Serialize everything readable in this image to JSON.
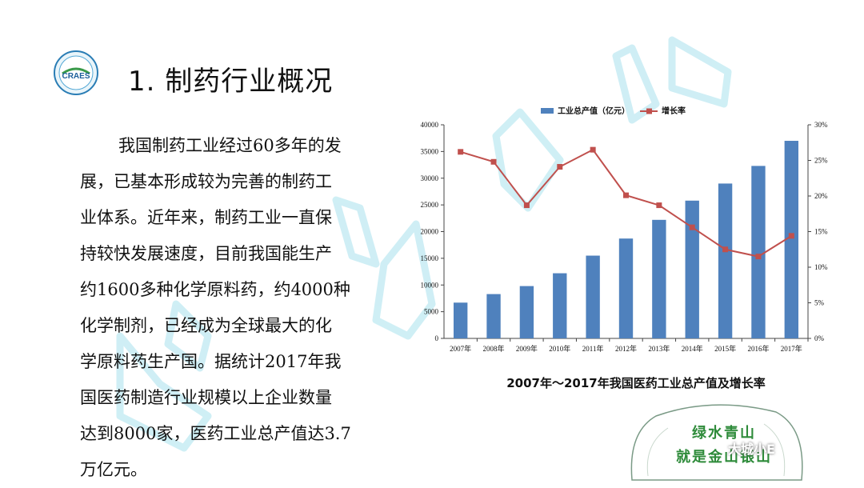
{
  "logo": {
    "text": "CRAES",
    "icon": "craes-logo-icon"
  },
  "slide": {
    "title": "1. 制药行业概况",
    "paragraph_lines": [
      "我国制药工业经过60多年的发",
      "展，已基本形成较为完善的制药工",
      "业体系。近年来，制药工业一直保",
      "持较快发展速度，目前我国能生产",
      "约1600多种化学原料药，约4000种",
      "化学制剂，已经成为全球最大的化",
      "学原料药生产国。据统计2017年我",
      "国医药制造行业规模以上企业数量",
      "达到8000家，医药工业总产值达3.7",
      "万亿元。"
    ],
    "chart_caption": "2007年～2017年我国医药工业总产值及增长率"
  },
  "decor": {
    "stone_line1": "绿水青山",
    "stone_line2": "就是金山银山",
    "brand": "大城小E"
  },
  "chart_data": {
    "type": "bar",
    "categories": [
      "2007年",
      "2008年",
      "2009年",
      "2010年",
      "2011年",
      "2012年",
      "2013年",
      "2014年",
      "2015年",
      "2016年",
      "2017年"
    ],
    "series": [
      {
        "name": "工业总产值（亿元）",
        "type": "bar",
        "axis": "left",
        "color": "#4f81bd",
        "values": [
          6700,
          8300,
          9800,
          12200,
          15500,
          18700,
          22200,
          25800,
          29000,
          32300,
          37000
        ]
      },
      {
        "name": "增长率",
        "type": "line",
        "axis": "right",
        "color": "#c0504d",
        "unit": "%",
        "values": [
          26.2,
          24.8,
          18.7,
          24.1,
          26.5,
          20.1,
          18.7,
          15.6,
          12.5,
          11.5,
          14.4
        ]
      }
    ],
    "ylim": [
      0,
      40000
    ],
    "yticks": [
      "0",
      "5000",
      "10000",
      "15000",
      "20000",
      "25000",
      "30000",
      "35000",
      "40000"
    ],
    "y2lim": [
      0,
      30
    ],
    "y2ticks": [
      "0%",
      "5%",
      "10%",
      "15%",
      "20%",
      "25%",
      "30%"
    ],
    "legend": "top",
    "grid": false
  }
}
